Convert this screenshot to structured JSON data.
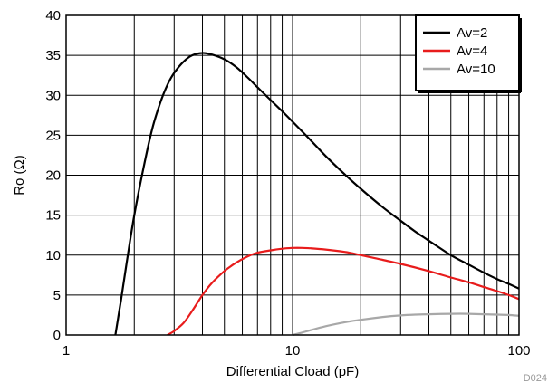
{
  "chart_data": {
    "type": "line",
    "title": "",
    "xlabel": "Differential Cload (pF)",
    "ylabel": "Ro (Ω)",
    "x_scale": "log",
    "xlim": [
      1,
      100
    ],
    "ylim": [
      0,
      40
    ],
    "x_ticks": [
      1,
      10,
      100
    ],
    "x_tick_labels": [
      "1",
      "10",
      "100"
    ],
    "y_ticks": [
      0,
      5,
      10,
      15,
      20,
      25,
      30,
      35,
      40
    ],
    "y_tick_labels": [
      "0",
      "5",
      "10",
      "15",
      "20",
      "25",
      "30",
      "35",
      "40"
    ],
    "grid": true,
    "legend_position": "top-right",
    "figure_id": "D024",
    "series": [
      {
        "name": "Av=2",
        "color": "#000000",
        "x": [
          1.65,
          1.75,
          1.85,
          2.0,
          2.2,
          2.4,
          2.6,
          2.8,
          3.0,
          3.3,
          3.6,
          4.0,
          4.4,
          5.0,
          5.6,
          6.3,
          7.0,
          8.0,
          9.0,
          10,
          12,
          14,
          17,
          20,
          25,
          30,
          35,
          40,
          50,
          60,
          70,
          80,
          90,
          100
        ],
        "y": [
          0,
          4.5,
          9,
          15,
          21,
          25.8,
          29,
          31.3,
          32.8,
          34.2,
          35.0,
          35.3,
          35.1,
          34.5,
          33.6,
          32.3,
          31.0,
          29.4,
          28.0,
          26.7,
          24.4,
          22.4,
          20.1,
          18.3,
          16.0,
          14.3,
          12.9,
          11.8,
          10.0,
          8.8,
          7.8,
          7.0,
          6.4,
          5.8
        ]
      },
      {
        "name": "Av=4",
        "color": "#e81c1c",
        "x": [
          2.8,
          3.0,
          3.3,
          3.6,
          4.0,
          4.4,
          5.0,
          5.6,
          6.3,
          7.0,
          8.0,
          9.0,
          10,
          11,
          12,
          14,
          17,
          20,
          25,
          30,
          40,
          50,
          60,
          70,
          80,
          90,
          100
        ],
        "y": [
          0,
          0.5,
          1.5,
          3.0,
          5.0,
          6.5,
          8.0,
          9.0,
          9.8,
          10.3,
          10.6,
          10.8,
          10.9,
          10.9,
          10.85,
          10.7,
          10.4,
          10.0,
          9.4,
          8.9,
          8.0,
          7.2,
          6.6,
          6.0,
          5.5,
          5.0,
          4.5
        ]
      },
      {
        "name": "Av=10",
        "color": "#a8a8a8",
        "x": [
          10,
          11,
          12,
          14,
          17,
          20,
          25,
          30,
          35,
          40,
          50,
          60,
          70,
          80,
          90,
          100
        ],
        "y": [
          0,
          0.3,
          0.6,
          1.1,
          1.6,
          1.9,
          2.25,
          2.45,
          2.55,
          2.6,
          2.65,
          2.65,
          2.6,
          2.55,
          2.5,
          2.4
        ]
      }
    ]
  }
}
